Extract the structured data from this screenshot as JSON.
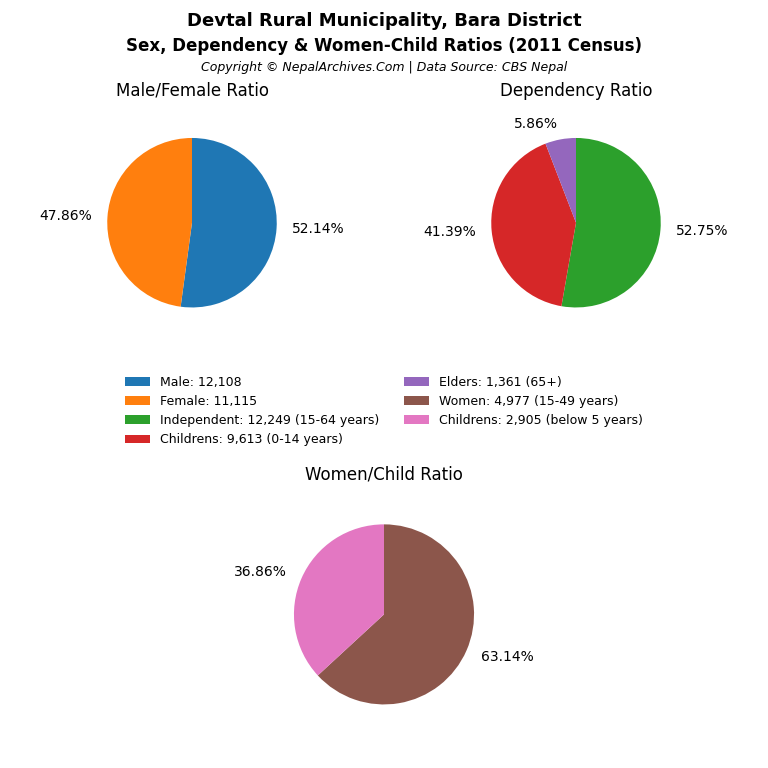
{
  "title": "Devtal Rural Municipality, Bara District",
  "subtitle": "Sex, Dependency & Women-Child Ratios (2011 Census)",
  "annotations": [
    "Copyright © NepalArchives.Com | Data Source: CBS Nepal"
  ],
  "chart_data": [
    {
      "type": "pie",
      "title": "Male/Female Ratio",
      "categories": [
        "Male: 12,108",
        "Female: 11,115"
      ],
      "values": [
        52.14,
        47.86
      ],
      "value_labels": [
        "52.14%",
        "47.86%"
      ],
      "colors": [
        "#1f77b4",
        "#ff7f0e"
      ],
      "data_labels": true,
      "legend": "center"
    },
    {
      "type": "pie",
      "title": "Dependency Ratio",
      "categories": [
        "Independent: 12,249 (15-64 years)",
        "Childrens: 9,613 (0-14 years)",
        "Elders: 1,361 (65+)"
      ],
      "values": [
        52.75,
        41.39,
        5.86
      ],
      "value_labels": [
        "52.75%",
        "41.39%",
        "5.86%"
      ],
      "colors": [
        "#2ca02c",
        "#d62728",
        "#9467bd"
      ],
      "data_labels": true,
      "legend": "center"
    },
    {
      "type": "pie",
      "title": "Women/Child Ratio",
      "categories": [
        "Women: 4,977 (15-49 years)",
        "Childrens: 2,905 (below 5 years)"
      ],
      "values": [
        63.14,
        36.86
      ],
      "value_labels": [
        "63.14%",
        "36.86%"
      ],
      "colors": [
        "#8c564b",
        "#e377c2"
      ],
      "data_labels": true,
      "legend": "center"
    }
  ]
}
